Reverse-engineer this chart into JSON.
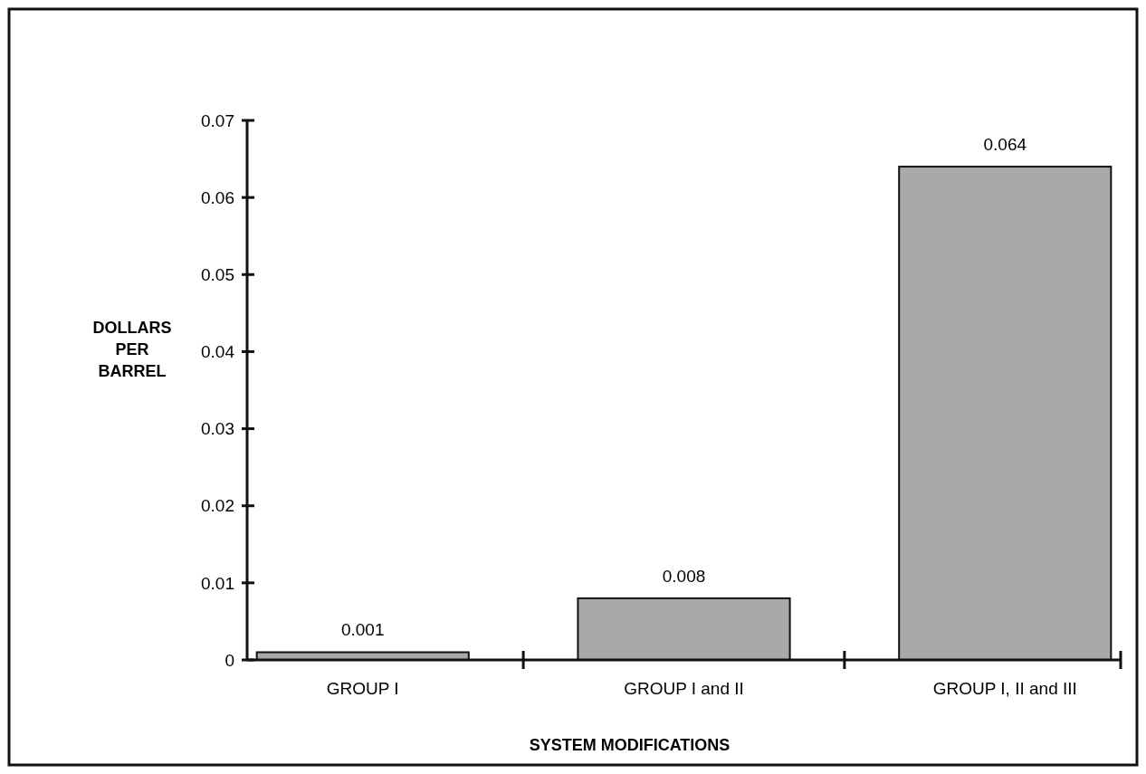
{
  "chart_data": {
    "type": "bar",
    "xlabel": "SYSTEM MODIFICATIONS",
    "ylabel": "DOLLARS PER BARREL",
    "categories": [
      "GROUP I",
      "GROUP I and II",
      "GROUP I, II and III"
    ],
    "values": [
      0.001,
      0.008,
      0.064
    ],
    "color": "#a9a9a9",
    "ylim": [
      0,
      0.07
    ],
    "yticks": [
      0,
      0.01,
      0.02,
      0.03,
      0.04,
      0.05,
      0.06,
      0.07
    ],
    "data_labels": true,
    "grid": false
  }
}
